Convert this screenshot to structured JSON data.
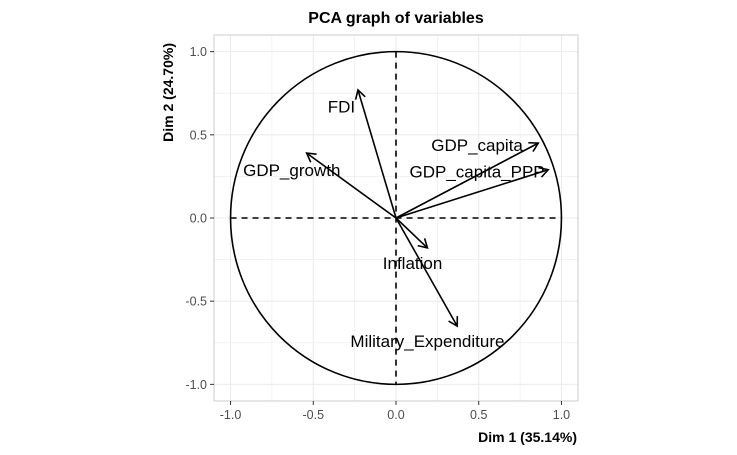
{
  "chart_data": {
    "type": "scatter",
    "subtype": "pca-correlation-circle",
    "title": "PCA graph of variables",
    "xlabel": "Dim 1 (35.14%)",
    "ylabel": "Dim 2 (24.70%)",
    "xlim": [
      -1.1,
      1.1
    ],
    "ylim": [
      -1.1,
      1.1
    ],
    "x_ticks": [
      -1.0,
      -0.5,
      0.0,
      0.5,
      1.0
    ],
    "y_ticks": [
      -1.0,
      -0.5,
      0.0,
      0.5,
      1.0
    ],
    "x_tick_labels": [
      "-1.0",
      "-0.5",
      "0.0",
      "0.5",
      "1.0"
    ],
    "y_tick_labels": [
      "-1.0",
      "-0.5",
      "0.0",
      "0.5",
      "1.0"
    ],
    "grid": true,
    "unit_circle": true,
    "arrow_color": "#000000",
    "grid_color": "#ebebeb",
    "panel_border_color": "#cccccc",
    "variables": [
      {
        "name": "FDI",
        "x": -0.23,
        "y": 0.77,
        "label_x": -0.33,
        "label_y": 0.67
      },
      {
        "name": "GDP_growth",
        "x": -0.54,
        "y": 0.39,
        "label_x": -0.63,
        "label_y": 0.29
      },
      {
        "name": "GDP_capita",
        "x": 0.86,
        "y": 0.45,
        "label_x": 0.49,
        "label_y": 0.44
      },
      {
        "name": "GDP_capita_PPP",
        "x": 0.92,
        "y": 0.29,
        "label_x": 0.49,
        "label_y": 0.28
      },
      {
        "name": "Inflation",
        "x": 0.19,
        "y": -0.18,
        "label_x": 0.1,
        "label_y": -0.27
      },
      {
        "name": "Military_Expenditure",
        "x": 0.37,
        "y": -0.65,
        "label_x": 0.19,
        "label_y": -0.74
      }
    ]
  }
}
